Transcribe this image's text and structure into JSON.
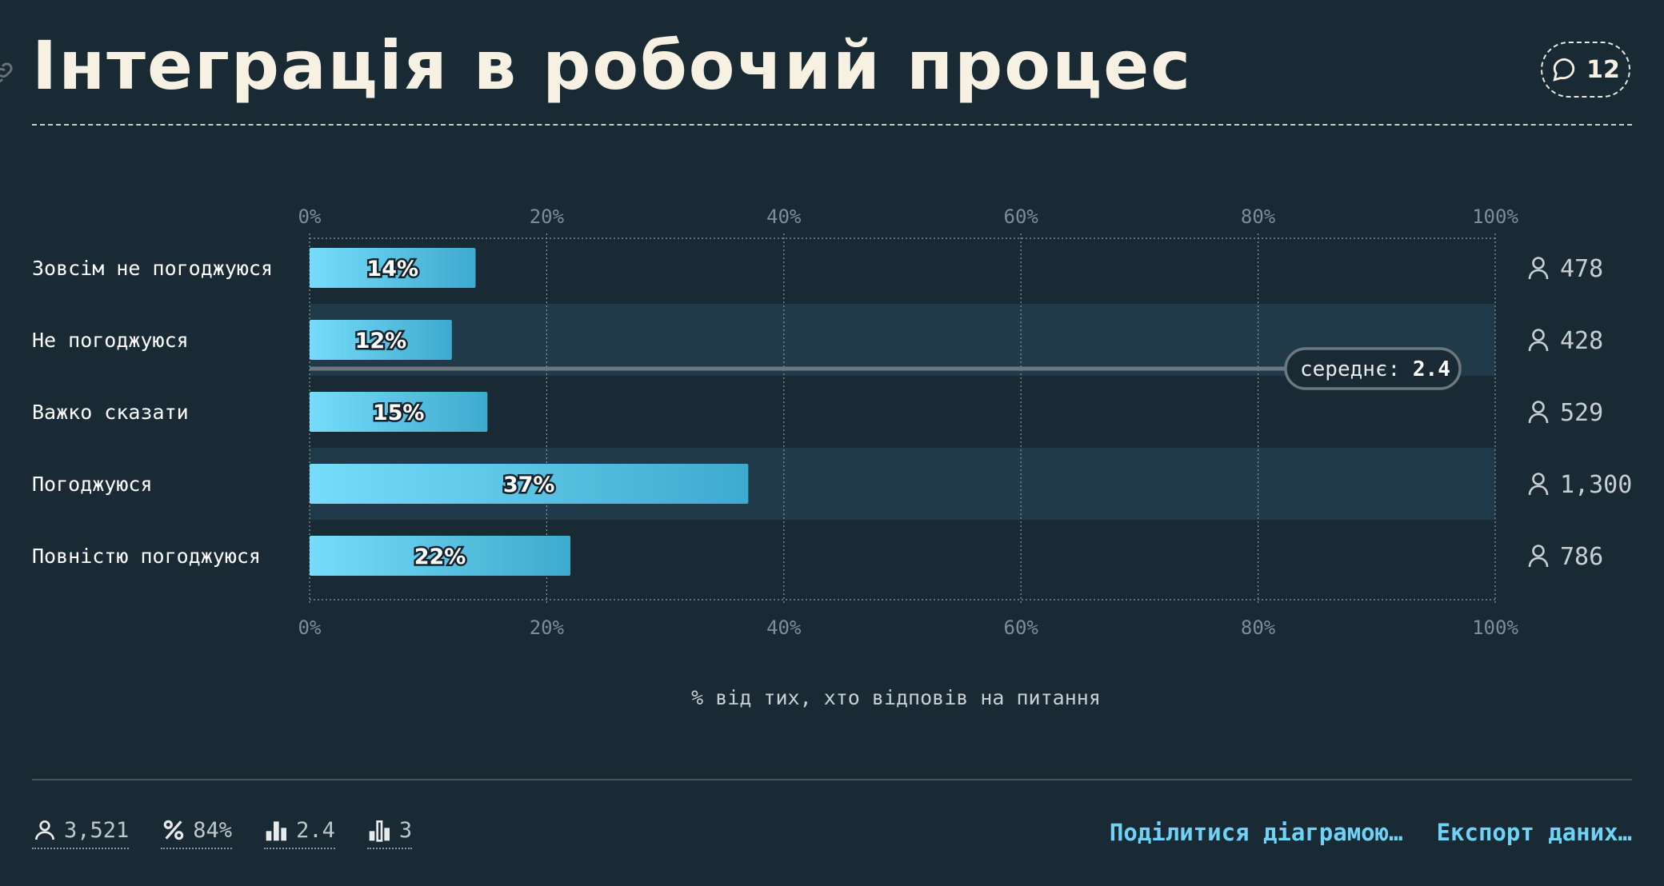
{
  "header": {
    "title": "Інтеграція в робочий процес",
    "comment_count": "12"
  },
  "chart_data": {
    "type": "bar",
    "orientation": "horizontal",
    "categories": [
      "Зовсім не погоджуюся",
      "Не погоджуюся",
      "Важко сказати",
      "Погоджуюся",
      "Повністю погоджуюся"
    ],
    "values": [
      14,
      12,
      15,
      37,
      22
    ],
    "value_labels": [
      "14%",
      "12%",
      "15%",
      "37%",
      "22%"
    ],
    "counts": [
      "478",
      "428",
      "529",
      "1,300",
      "786"
    ],
    "xlim": [
      0,
      100
    ],
    "x_ticks": [
      "0%",
      "20%",
      "40%",
      "60%",
      "80%",
      "100%"
    ],
    "xlabel": "% від тих, хто відповів на питання",
    "mean": {
      "label": "середнє:",
      "value": "2.4"
    },
    "grid": true,
    "colors": {
      "bar_start": "#76dcfb",
      "bar_end": "#3eaacd",
      "band": "#213a49",
      "background": "#192a34"
    }
  },
  "footer": {
    "stats": [
      {
        "icon": "person-icon",
        "value": "3,521"
      },
      {
        "icon": "percent-icon",
        "value": "84%"
      },
      {
        "icon": "bar-mean-icon",
        "value": "2.4"
      },
      {
        "icon": "bar-median-icon",
        "value": "3"
      }
    ],
    "share_label": "Поділитися діаграмою…",
    "export_label": "Експорт даних…"
  }
}
